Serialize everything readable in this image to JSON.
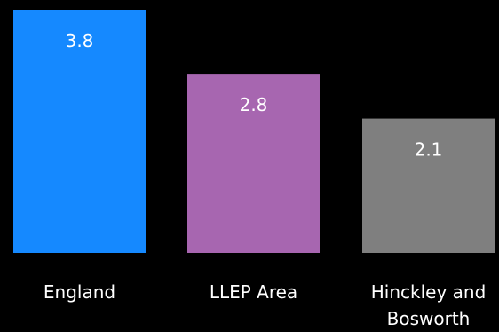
{
  "chart_data": {
    "type": "bar",
    "categories": [
      [
        "England"
      ],
      [
        "LLEP Area"
      ],
      [
        "Hinckley and",
        "Bosworth"
      ]
    ],
    "values": [
      3.8,
      2.8,
      2.1
    ],
    "value_labels": [
      "3.8",
      "2.8",
      "2.1"
    ],
    "colors": [
      "#1589ff",
      "#a766b0",
      "#7f7f7f"
    ],
    "title": "",
    "xlabel": "",
    "ylabel": "",
    "ylim": [
      0,
      3.8
    ],
    "grid": false,
    "legend": "none"
  }
}
